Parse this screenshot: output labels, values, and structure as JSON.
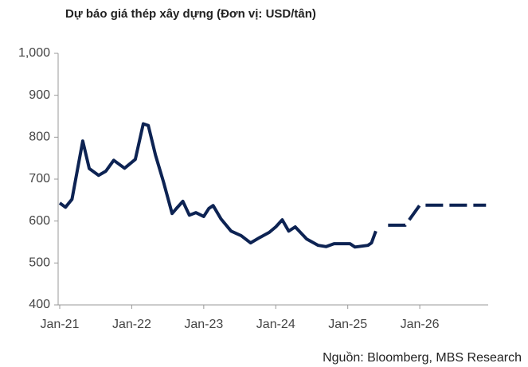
{
  "chart_data": {
    "type": "line",
    "title": "Dự báo giá thép xây dựng (Đơn vị: USD/tân)",
    "source": "Nguồn: Bloomberg, MBS Research",
    "xlim": [
      2021,
      2026.95
    ],
    "ylim": [
      400,
      1000
    ],
    "xticks": [
      {
        "value": 2021,
        "label": "Jan-21"
      },
      {
        "value": 2022,
        "label": "Jan-22"
      },
      {
        "value": 2023,
        "label": "Jan-23"
      },
      {
        "value": 2024,
        "label": "Jan-24"
      },
      {
        "value": 2025,
        "label": "Jan-25"
      },
      {
        "value": 2026,
        "label": "Jan-26"
      }
    ],
    "yticks": [
      {
        "value": 400,
        "label": "400"
      },
      {
        "value": 500,
        "label": "500"
      },
      {
        "value": 600,
        "label": "600"
      },
      {
        "value": 700,
        "label": "700"
      },
      {
        "value": 800,
        "label": "800"
      },
      {
        "value": 900,
        "label": "900"
      },
      {
        "value": 1000,
        "label": "1,000"
      }
    ],
    "series": [
      {
        "color": "#0d2353",
        "dashed": false,
        "x": [
          2021.0,
          2021.08,
          2021.17,
          2021.32,
          2021.41,
          2021.54,
          2021.64,
          2021.75,
          2021.9,
          2022.05,
          2022.16,
          2022.23,
          2022.33,
          2022.44,
          2022.56,
          2022.62,
          2022.71,
          2022.8,
          2022.89,
          2023.0,
          2023.07,
          2023.13,
          2023.24,
          2023.38,
          2023.52,
          2023.65,
          2023.78,
          2023.91,
          2024.0,
          2024.09,
          2024.18,
          2024.27,
          2024.43,
          2024.59,
          2024.7,
          2024.81,
          2025.03,
          2025.1,
          2025.28,
          2025.33,
          2025.39
        ],
        "values": [
          643,
          633,
          652,
          791,
          725,
          709,
          719,
          745,
          726,
          747,
          832,
          828,
          757,
          694,
          618,
          630,
          647,
          614,
          620,
          611,
          630,
          637,
          605,
          576,
          565,
          548,
          561,
          573,
          586,
          603,
          576,
          586,
          557,
          542,
          539,
          546,
          546,
          538,
          542,
          548,
          576
        ]
      },
      {
        "color": "#0d2353",
        "dashed": true,
        "x": [
          2025.56,
          2025.8,
          2026.0,
          2026.92
        ],
        "values": [
          590,
          590,
          638,
          638
        ]
      }
    ]
  }
}
